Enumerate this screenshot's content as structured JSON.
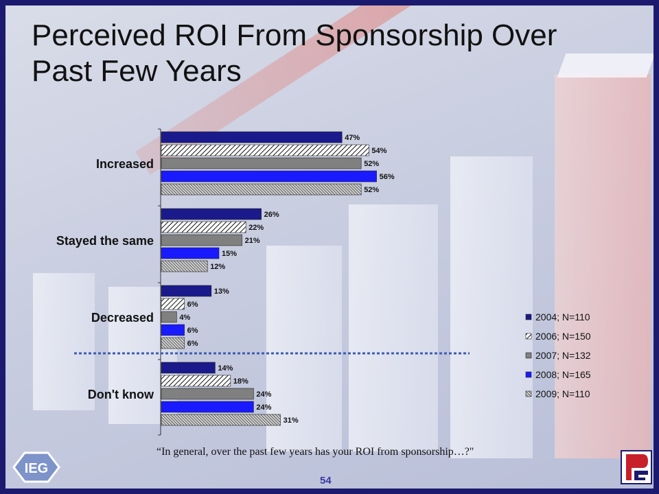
{
  "title": "Perceived ROI From Sponsorship Over Past Few Years",
  "question": "“In general, over the past few years has your ROI from sponsorship…?\"",
  "page_number": "54",
  "logos": {
    "left": "ieg-logo",
    "right": "pf-logo",
    "left_text": "IEG"
  },
  "colors": {
    "frame": "#1c1a6e",
    "series_2004": "#1a1a8c",
    "series_2006": "#ffffff",
    "series_2007": "#808080",
    "series_2008": "#1a1aff",
    "series_2009": "#bfbfbf",
    "divider": "#3a5bb0"
  },
  "chart_data": {
    "type": "bar",
    "orientation": "horizontal",
    "categories": [
      "Increased",
      "Stayed the same",
      "Decreased",
      "Don't know"
    ],
    "series": [
      {
        "name": "2004; N=110",
        "values": [
          47,
          26,
          13,
          14
        ],
        "pattern": "solid-navy"
      },
      {
        "name": "2006; N=150",
        "values": [
          54,
          22,
          6,
          18
        ],
        "pattern": "hatch-diagonal"
      },
      {
        "name": "2007; N=132",
        "values": [
          52,
          21,
          4,
          24
        ],
        "pattern": "solid-gray"
      },
      {
        "name": "2008; N=165",
        "values": [
          56,
          15,
          6,
          24
        ],
        "pattern": "solid-blue"
      },
      {
        "name": "2009; N=110",
        "values": [
          52,
          12,
          6,
          31
        ],
        "pattern": "hatch-dense"
      }
    ],
    "value_suffix": "%",
    "xlim": [
      0,
      100
    ],
    "legend_position": "right",
    "grid": false
  }
}
